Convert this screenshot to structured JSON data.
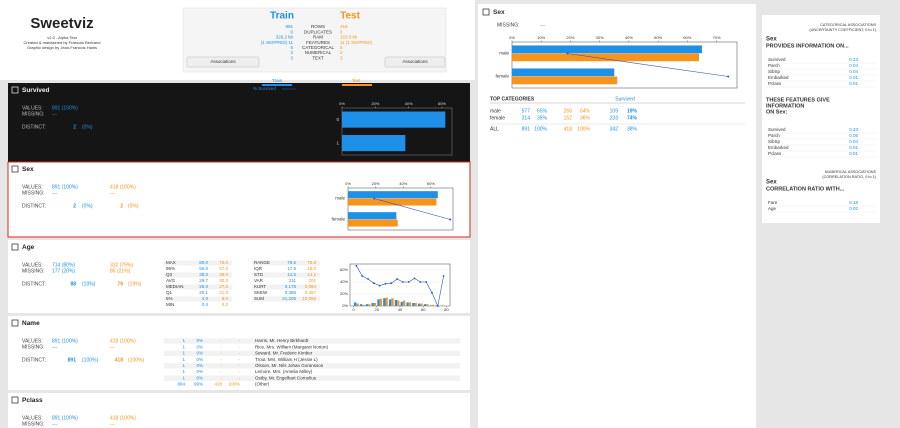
{
  "header": {
    "logo": "Sweetviz",
    "version": "v2.0 - Alpha Test",
    "credit1": "Created & maintained by Francois Bertrand",
    "credit2": "Graphic design by Jean-Francois Hains"
  },
  "summary": {
    "train": "Train",
    "test": "Test",
    "rows": [
      [
        "891",
        "ROWS",
        "418"
      ],
      [
        "0",
        "DUPLICATES",
        "0"
      ],
      [
        "326.2 kb",
        "RAM",
        "153.0 kb"
      ],
      [
        "(1 SKIPPED) 11",
        "FEATURES",
        "11 (1 SKIPPED)"
      ],
      [
        "5",
        "CATEGORICAL",
        "5"
      ],
      [
        "2",
        "NUMERICAL",
        "2"
      ],
      [
        "3",
        "TEXT",
        "3"
      ]
    ],
    "button_left": "Associations",
    "button_right": "Associations",
    "legend_train": "Train",
    "legend_test": "Test",
    "legend_survived": "% Survived"
  },
  "features": {
    "survived": {
      "title": "Survived",
      "stats": [
        [
          "VALUES:",
          "891 (100%)"
        ],
        [
          "MISSING:",
          "---"
        ],
        [
          "DISTINCT:",
          "2",
          "(0%)"
        ]
      ],
      "chart": {
        "type": "barh",
        "categories": [
          "0",
          "1"
        ],
        "xlim": [
          0,
          66
        ],
        "xticks": [
          {
            "value": 0,
            "label": "0%"
          },
          {
            "value": 20,
            "label": "20%"
          },
          {
            "value": 40,
            "label": "40%"
          },
          {
            "value": 60,
            "label": "60%"
          }
        ],
        "series": [
          {
            "name": "Train",
            "color": "#1e90e8",
            "values": [
              62,
              38
            ]
          }
        ]
      }
    },
    "sex": {
      "title": "Sex",
      "stats": [
        [
          "VALUES:",
          "891 (100%)",
          "418 (100%)"
        ],
        [
          "MISSING:",
          "---",
          "---"
        ],
        [
          "DISTINCT:",
          "2",
          "(0%)",
          "2",
          "(0%)"
        ]
      ],
      "chart": {
        "type": "barh",
        "categories": [
          "male",
          "female"
        ],
        "xlim": [
          0,
          76
        ],
        "xticks": [
          {
            "value": 0,
            "label": "0%"
          },
          {
            "value": 20,
            "label": "20%"
          },
          {
            "value": 40,
            "label": "40%"
          },
          {
            "value": 60,
            "label": "60%"
          }
        ],
        "series": [
          {
            "name": "Train",
            "color": "#1e90e8",
            "values": [
              65,
              35
            ]
          },
          {
            "name": "Test",
            "color": "#f7941d",
            "values": [
              64,
              36
            ]
          },
          {
            "name": "% Survived",
            "type": "line",
            "color": "#2a52be",
            "values": [
              19,
              74
            ]
          }
        ]
      }
    },
    "age": {
      "title": "Age",
      "stats": [
        [
          "VALUES:",
          "714 (80%)",
          "332 (79%)"
        ],
        [
          "MISSING:",
          "177 (20%)",
          "86 (21%)"
        ],
        [
          "DISTINCT:",
          "88",
          "(10%)",
          "79",
          "(19%)"
        ]
      ],
      "table_left": [
        [
          "MAX",
          "80.0",
          "76.0"
        ],
        [
          "95%",
          "56.0",
          "57.0"
        ],
        [
          "Q3",
          "38.0",
          "39.0"
        ],
        [
          "AVG",
          "29.7",
          "30.3"
        ],
        [
          "MEDIAN",
          "28.0",
          "27.0"
        ],
        [
          "Q1",
          "20.1",
          "21.0"
        ],
        [
          "5%",
          "4.0",
          "8.0"
        ],
        [
          "MIN",
          "0.4",
          "0.2"
        ]
      ],
      "table_right": [
        [
          "RANGE",
          "79.6",
          "75.8"
        ],
        [
          "IQR",
          "17.9",
          "18.0"
        ],
        [
          "STD",
          "14.5",
          "14.2"
        ],
        [
          "VAR",
          "211",
          "201"
        ],
        [
          "KURT",
          "0.178",
          "0.084"
        ],
        [
          "SKEW",
          "0.389",
          "0.457"
        ],
        [
          "SUM",
          "21,205",
          "10,050"
        ]
      ],
      "chart": {
        "type": "histogram",
        "bins": [
          0,
          5,
          10,
          15,
          20,
          25,
          30,
          35,
          40,
          45,
          50,
          55,
          60,
          65,
          70,
          75,
          80
        ],
        "xlim": [
          -3,
          83
        ],
        "ylim": [
          0,
          70
        ],
        "xticks": [
          0,
          20,
          40,
          60,
          80
        ],
        "yticks": [
          {
            "value": 0,
            "label": "0%"
          },
          {
            "value": 20,
            "label": "20%"
          },
          {
            "value": 40,
            "label": "40%"
          },
          {
            "value": 60,
            "label": "60%"
          }
        ],
        "series": [
          {
            "name": "Train",
            "color": "#1e90e8",
            "values": [
              6,
              3,
              3,
              5,
              11,
              13,
              11,
              10,
              7,
              6,
              5,
              4,
              3,
              1,
              1,
              0.5
            ]
          },
          {
            "name": "Test",
            "color": "#f7941d",
            "values": [
              4,
              2,
              3,
              5,
              12,
              14,
              13,
              9,
              9,
              6,
              5,
              4,
              3,
              2,
              0.5,
              0
            ]
          },
          {
            "name": "% Survived",
            "type": "line",
            "color": "#2a52be",
            "values": [
              67,
              50,
              45,
              38,
              34,
              37,
              38,
              45,
              40,
              40,
              46,
              40,
              40,
              22,
              0,
              50
            ]
          }
        ]
      }
    },
    "name": {
      "title": "Name",
      "stats": [
        [
          "VALUES:",
          "891 (100%)",
          "418 (100%)"
        ],
        [
          "MISSING:",
          "---",
          "---"
        ],
        [
          "DISTINCT:",
          "891",
          "(100%)",
          "418",
          "(100%)"
        ]
      ],
      "table": [
        [
          "1",
          "0%",
          "-",
          "-",
          "Harris, Mr. Henry Birkhardt"
        ],
        [
          "1",
          "0%",
          "-",
          "-",
          "Rice, Mrs. William (Margaret Norton)"
        ],
        [
          "1",
          "0%",
          "-",
          "-",
          "Seward, Mr. Frederic Kimber"
        ],
        [
          "1",
          "0%",
          "-",
          "-",
          "Trout, Mrs. William H (Jessie L)"
        ],
        [
          "1",
          "0%",
          "-",
          "-",
          "Olsson, Mr. Nils Johan Goransson"
        ],
        [
          "1",
          "0%",
          "-",
          "-",
          "Lemore, Mrs. (Amelia Milley)"
        ],
        [
          "1",
          "0%",
          "-",
          "-",
          "Ostby, Mr. Engelhart Cornelius"
        ],
        [
          "884",
          "99%",
          "418",
          "100%",
          "(Other)"
        ]
      ]
    },
    "pclass": {
      "title": "Pclass",
      "stats": [
        [
          "VALUES:",
          "891 (100%)",
          "418 (100%)"
        ],
        [
          "MISSING:",
          "---",
          "---"
        ]
      ]
    }
  },
  "detail": {
    "title": "Sex",
    "missing_label": "MISSING:",
    "missing": "---",
    "chart": {
      "type": "barh",
      "categories": [
        "male",
        "female"
      ],
      "xlim": [
        0,
        77
      ],
      "xticks": [
        {
          "value": 0,
          "label": "0%"
        },
        {
          "value": 10,
          "label": "10%"
        },
        {
          "value": 20,
          "label": "20%"
        },
        {
          "value": 30,
          "label": "30%"
        },
        {
          "value": 40,
          "label": "40%"
        },
        {
          "value": 50,
          "label": "50%"
        },
        {
          "value": 60,
          "label": "60%"
        },
        {
          "value": 70,
          "label": "70%"
        }
      ],
      "series": [
        {
          "name": "Train",
          "color": "#1e90e8",
          "values": [
            65,
            35
          ]
        },
        {
          "name": "Test",
          "color": "#f7941d",
          "values": [
            64,
            36
          ]
        },
        {
          "name": "% Survived",
          "type": "line",
          "color": "#2a52be",
          "values": [
            19,
            74
          ]
        }
      ]
    },
    "top_label": "TOP CATEGORIES",
    "survived_label": "Survived",
    "rows": [
      [
        "male",
        "577",
        "65%",
        "266",
        "64%",
        "109",
        "19%"
      ],
      [
        "female",
        "314",
        "35%",
        "152",
        "36%",
        "233",
        "74%"
      ],
      [
        "ALL",
        "891",
        "100%",
        "418",
        "100%",
        "342",
        "38%"
      ]
    ]
  },
  "associations": {
    "cat_title": "CATEGORICAL ASSOCIATIONS",
    "cat_sub": "(UNCERTAINTY COEFFICIENT, 0 to 1)",
    "feature": "Sex",
    "provides": "PROVIDES INFORMATION ON...",
    "provides_rows": [
      [
        "Survived",
        "0.23"
      ],
      [
        "Parch",
        "0.04"
      ],
      [
        "SibSp",
        "0.04"
      ],
      [
        "Embarked",
        "0.01"
      ],
      [
        "Pclass",
        "0.01"
      ]
    ],
    "gives1": "THESE FEATURES GIVE",
    "gives2": "INFORMATION",
    "gives3": "ON Sex:",
    "gives_rows": [
      [
        "Survived",
        "0.23"
      ],
      [
        "Parch",
        "0.05"
      ],
      [
        "SibSp",
        "0.04"
      ],
      [
        "Embarked",
        "0.01"
      ],
      [
        "Pclass",
        "0.01"
      ]
    ],
    "num_title": "NUMERICAL ASSOCIATIONS",
    "num_sub": "(CORRELATION RATIO, 0 to 1)",
    "num_feature": "Sex",
    "num_with": "CORRELATION RATIO WITH...",
    "num_rows": [
      [
        "Fare",
        "0.18"
      ],
      [
        "Age",
        "0.02"
      ]
    ]
  }
}
